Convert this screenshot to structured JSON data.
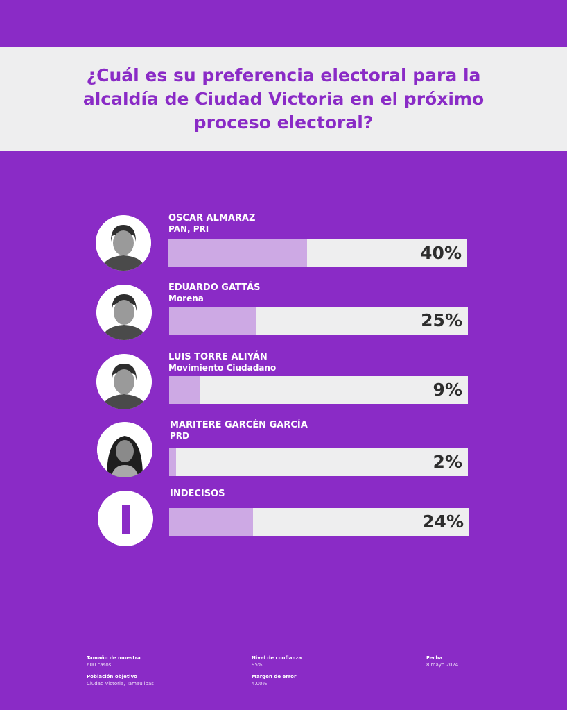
{
  "chart_data": {
    "type": "bar",
    "title": "¿Cuál es su preferencia electoral para la alcaldía de Ciudad Victoria en el próximo proceso electoral?",
    "unit": "%",
    "xlim": [
      0,
      100
    ],
    "categories": [
      "OSCAR ALMARAZ",
      "EDUARDO GATTÁS",
      "LUIS TORRE ALIYÁN",
      "MARITERE GARCÉN GARCÍA",
      "INDECISOS"
    ],
    "series": [
      {
        "values": [
          40,
          25,
          9,
          2,
          24
        ]
      }
    ],
    "rows": [
      {
        "name": "OSCAR ALMARAZ",
        "party": "PAN, PRI",
        "value": 40,
        "label": "40%"
      },
      {
        "name": "EDUARDO GATTÁS",
        "party": "Morena",
        "value": 25,
        "label": "25%"
      },
      {
        "name": "LUIS TORRE ALIYÁN",
        "party": "Movimiento Ciudadano",
        "value": 9,
        "label": "9%"
      },
      {
        "name": "MARITERE GARCÉN GARCÍA",
        "party": "PRD",
        "value": 2,
        "label": "2%"
      },
      {
        "name": "INDECISOS",
        "party": "",
        "value": 24,
        "label": "24%"
      }
    ]
  },
  "avatars": [
    "man-portrait-icon",
    "man-portrait-icon",
    "man-portrait-icon",
    "woman-portrait-icon",
    "undecided-bar-icon"
  ],
  "colors": {
    "background": "#8a2bc6",
    "header_background": "#eeeeef",
    "bar_fill": "#cda9e4",
    "bar_track": "#eeeeef"
  },
  "footer": {
    "sample_label": "Tamaño de muestra",
    "sample_value": "600 casos",
    "population_label": "Población objetivo",
    "population_value": "Ciudad Victoria, Tamaulipas",
    "confidence_label": "Nivel de confianza",
    "confidence_value": "95%",
    "error_label": "Margen de error",
    "error_value": "4.00%",
    "date_label": "Fecha",
    "date_value": "8 mayo 2024"
  }
}
